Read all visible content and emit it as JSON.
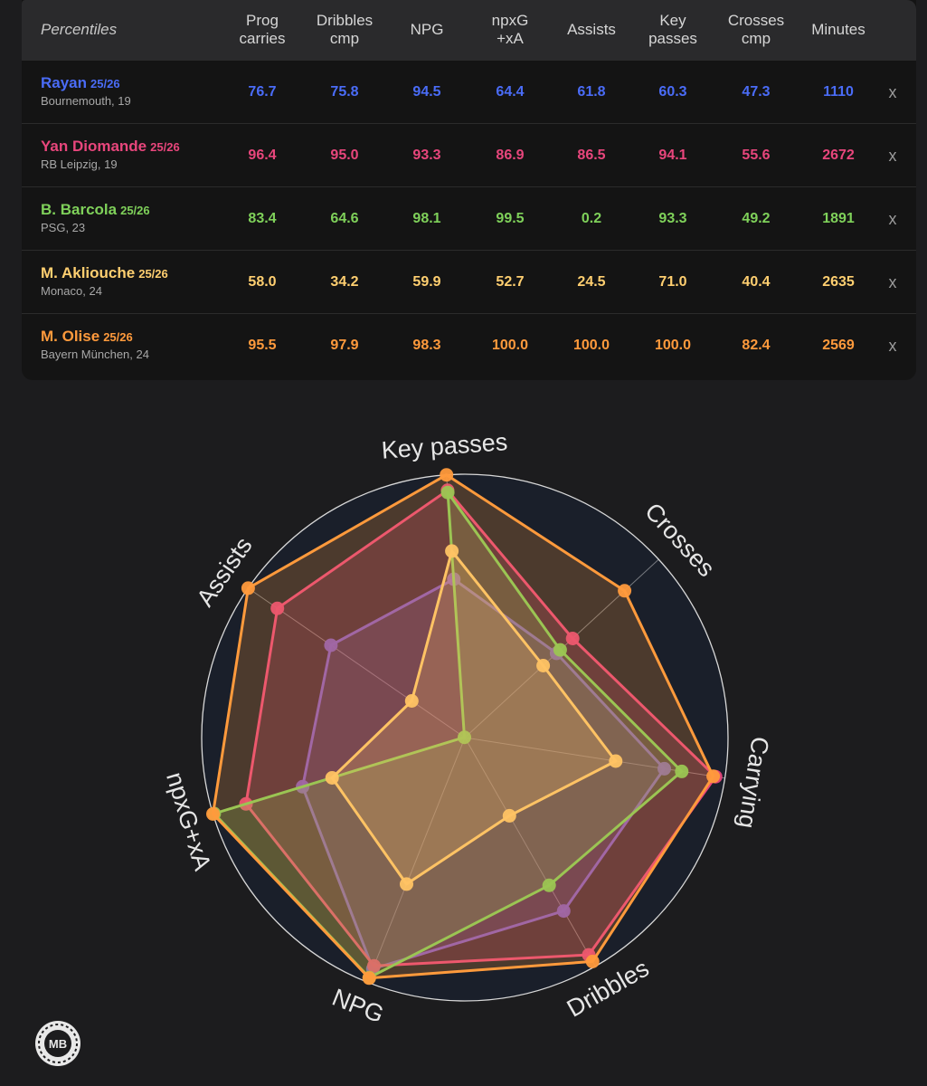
{
  "table": {
    "header_label": "Percentiles",
    "columns": [
      {
        "line1": "Prog",
        "line2": "carries"
      },
      {
        "line1": "Dribbles",
        "line2": "cmp"
      },
      {
        "line1": "NPG",
        "line2": ""
      },
      {
        "line1": "npxG",
        "line2": "+xA"
      },
      {
        "line1": "Assists",
        "line2": ""
      },
      {
        "line1": "Key",
        "line2": "passes"
      },
      {
        "line1": "Crosses",
        "line2": "cmp"
      },
      {
        "line1": "Minutes",
        "line2": ""
      }
    ],
    "remove_label": "x"
  },
  "players": [
    {
      "name": "Rayan",
      "season": "25/26",
      "club": "Bournemouth, 19",
      "color": "#4a6cf7",
      "values": [
        "76.7",
        "75.8",
        "94.5",
        "64.4",
        "61.8",
        "60.3",
        "47.3",
        "1110"
      ]
    },
    {
      "name": "Yan Diomande",
      "season": "25/26",
      "club": "RB Leipzig, 19",
      "color": "#e8467c",
      "values": [
        "96.4",
        "95.0",
        "93.3",
        "86.9",
        "86.5",
        "94.1",
        "55.6",
        "2672"
      ]
    },
    {
      "name": "B. Barcola",
      "season": "25/26",
      "club": "PSG, 23",
      "color": "#7fd15a",
      "values": [
        "83.4",
        "64.6",
        "98.1",
        "99.5",
        "0.2",
        "93.3",
        "49.2",
        "1891"
      ]
    },
    {
      "name": "M. Akliouche",
      "season": "25/26",
      "club": "Monaco, 24",
      "color": "#ffcf70",
      "values": [
        "58.0",
        "34.2",
        "59.9",
        "52.7",
        "24.5",
        "71.0",
        "40.4",
        "2635"
      ]
    },
    {
      "name": "M. Olise",
      "season": "25/26",
      "club": "Bayern München, 24",
      "color": "#ff9a3c",
      "values": [
        "95.5",
        "97.9",
        "98.3",
        "100.0",
        "100.0",
        "100.0",
        "82.4",
        "2569"
      ]
    }
  ],
  "logo_text": "MB",
  "chart_data": {
    "type": "radar",
    "axes": [
      "Key passes",
      "Crosses",
      "Carrying",
      "Dribbles",
      "NPG",
      "npxG+xA",
      "Assists"
    ],
    "range": [
      0,
      100
    ],
    "series": [
      {
        "name": "Rayan",
        "color": "#6c5fd6",
        "values": [
          60.3,
          47.3,
          76.7,
          75.8,
          94.5,
          64.4,
          61.8
        ]
      },
      {
        "name": "Yan Diomande",
        "color": "#e8467c",
        "values": [
          94.1,
          55.6,
          96.4,
          95.0,
          93.3,
          86.9,
          86.5
        ]
      },
      {
        "name": "B. Barcola",
        "color": "#7fd15a",
        "values": [
          93.3,
          49.2,
          83.4,
          64.6,
          98.1,
          99.5,
          0.2
        ]
      },
      {
        "name": "M. Akliouche",
        "color": "#ffcf70",
        "values": [
          71.0,
          40.4,
          58.0,
          34.2,
          59.9,
          52.7,
          24.5
        ]
      },
      {
        "name": "M. Olise",
        "color": "#ff9a3c",
        "values": [
          100.0,
          82.4,
          95.5,
          97.9,
          98.3,
          100.0,
          100.0
        ]
      }
    ]
  }
}
